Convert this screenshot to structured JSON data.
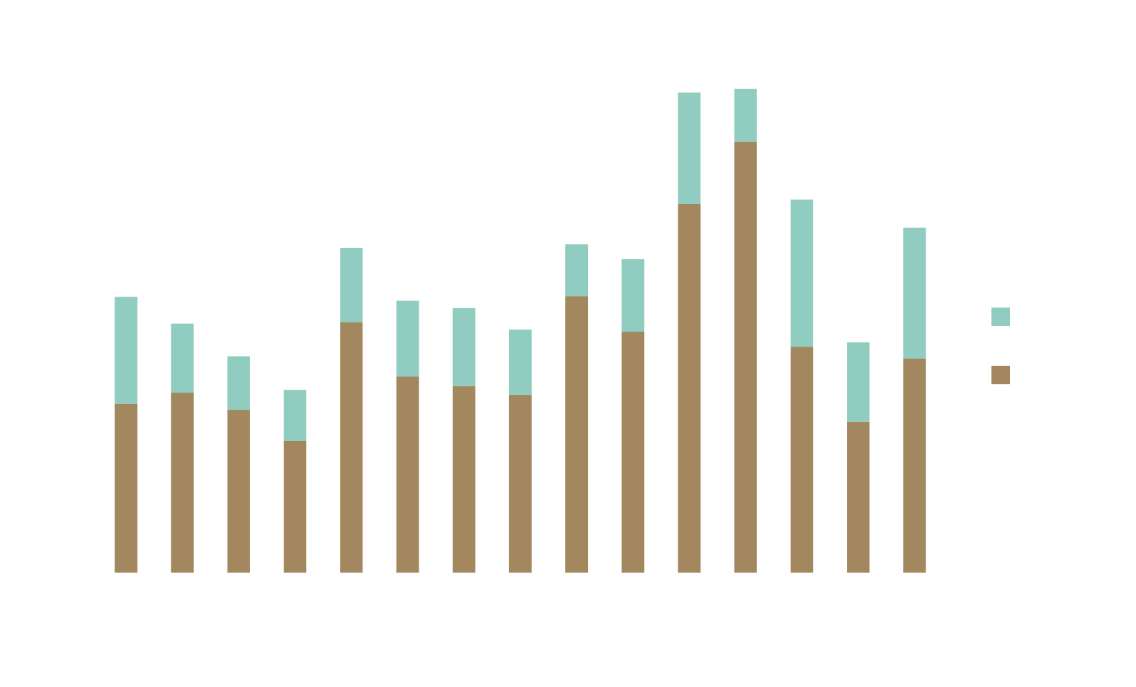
{
  "chart_data": {
    "type": "bar",
    "stacked": true,
    "orientation": "vertical",
    "categories": [
      "",
      "",
      "",
      "",
      "",
      "",
      "",
      "",
      "",
      "",
      "",
      "",
      "",
      "",
      ""
    ],
    "series": [
      {
        "color": "#a3875f",
        "values": [
          227,
          242,
          219,
          177,
          337,
          264,
          251,
          239,
          372,
          324,
          496,
          580,
          304,
          203,
          288
        ]
      },
      {
        "color": "#91ccc0",
        "values": [
          144,
          93,
          72,
          69,
          100,
          102,
          105,
          88,
          70,
          98,
          150,
          71,
          198,
          107,
          176
        ]
      }
    ],
    "ylim": [
      0,
      660
    ],
    "grid": false,
    "legend_position": "right",
    "axes_visible": false
  }
}
